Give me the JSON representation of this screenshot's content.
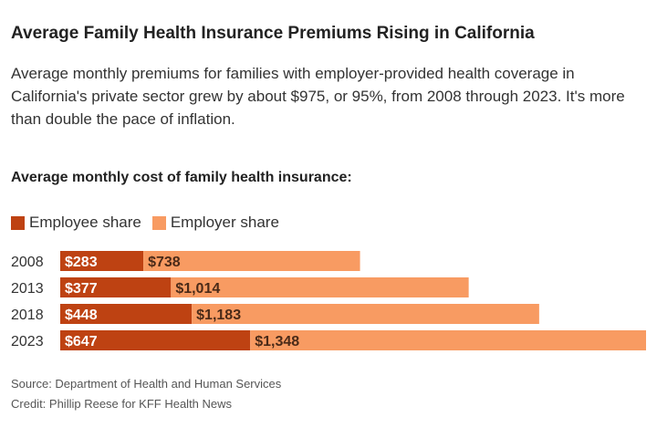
{
  "title": "Average Family Health Insurance Premiums Rising in California",
  "subtitle": "Average monthly premiums for families with employer-provided health coverage in California's private sector grew by about $975, or 95%, from 2008 through 2023. It's more than double the pace of inflation.",
  "source": "Source: Department of Health and Human Services",
  "credit": "Credit: Phillip Reese for KFF Health News",
  "chart_data": {
    "type": "bar",
    "orientation": "horizontal",
    "stacked": true,
    "title": "Average monthly cost of family health insurance:",
    "categories": [
      "2008",
      "2013",
      "2018",
      "2023"
    ],
    "series": [
      {
        "name": "Employee share",
        "color": "#BE4212",
        "values": [
          283,
          377,
          448,
          647
        ],
        "labels": [
          "$283",
          "$377",
          "$448",
          "$647"
        ]
      },
      {
        "name": "Employer share",
        "color": "#F89B62",
        "values": [
          738,
          1014,
          1183,
          1348
        ],
        "labels": [
          "$738",
          "$1,014",
          "$1,183",
          "$1,348"
        ]
      }
    ],
    "grid": false,
    "legend": "top-left"
  }
}
